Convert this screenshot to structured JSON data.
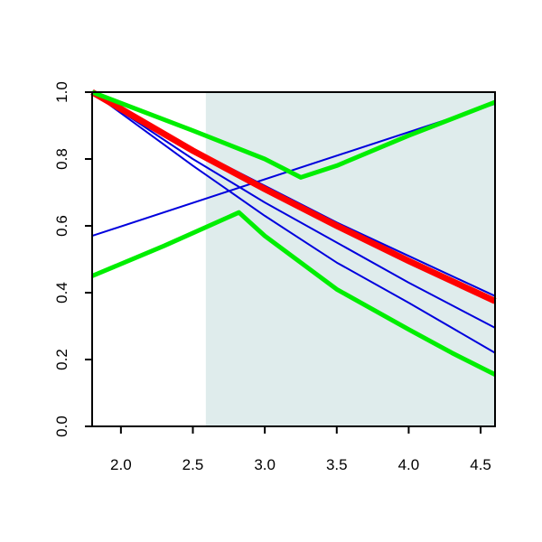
{
  "chart_data": {
    "type": "line",
    "title": "",
    "xlabel": "",
    "ylabel": "",
    "xlim": [
      1.8,
      4.6
    ],
    "ylim": [
      0.0,
      1.0
    ],
    "x_ticks": [
      2.0,
      2.5,
      3.0,
      3.5,
      4.0,
      4.5
    ],
    "x_tick_labels": [
      "2.0",
      "2.5",
      "3.0",
      "3.5",
      "4.0",
      "4.5"
    ],
    "y_ticks": [
      0.0,
      0.2,
      0.4,
      0.6,
      0.8,
      1.0
    ],
    "y_tick_labels": [
      "0.0",
      "0.2",
      "0.4",
      "0.6",
      "0.8",
      "1.0"
    ],
    "grid": false,
    "legend": "none",
    "shaded_region": {
      "x_from": 2.59,
      "x_to": 4.6,
      "color": "#dfecec"
    },
    "series": [
      {
        "color": "#0000dd",
        "width": 2,
        "points": [
          [
            1.8,
            0.57
          ],
          [
            4.6,
            0.965
          ]
        ]
      },
      {
        "color": "#0000dd",
        "width": 2,
        "points": [
          [
            1.8,
            1.0
          ],
          [
            2.5,
            0.83
          ],
          [
            3.0,
            0.72
          ],
          [
            3.5,
            0.61
          ],
          [
            4.0,
            0.51
          ],
          [
            4.6,
            0.39
          ]
        ]
      },
      {
        "color": "#0000dd",
        "width": 2,
        "points": [
          [
            1.8,
            1.0
          ],
          [
            2.5,
            0.8
          ],
          [
            3.0,
            0.67
          ],
          [
            3.5,
            0.55
          ],
          [
            4.0,
            0.43
          ],
          [
            4.6,
            0.295
          ]
        ]
      },
      {
        "color": "#0000dd",
        "width": 2,
        "points": [
          [
            1.8,
            1.0
          ],
          [
            2.5,
            0.78
          ],
          [
            3.0,
            0.63
          ],
          [
            3.5,
            0.49
          ],
          [
            4.0,
            0.37
          ],
          [
            4.6,
            0.22
          ]
        ]
      },
      {
        "color": "#ff0000",
        "width": 7,
        "points": [
          [
            1.8,
            1.0
          ],
          [
            2.5,
            0.825
          ],
          [
            3.0,
            0.71
          ],
          [
            3.5,
            0.6
          ],
          [
            4.0,
            0.495
          ],
          [
            4.6,
            0.375
          ]
        ]
      },
      {
        "color": "#00ee00",
        "width": 5,
        "points": [
          [
            1.8,
            1.0
          ],
          [
            2.5,
            0.885
          ],
          [
            3.0,
            0.8
          ],
          [
            3.25,
            0.745
          ],
          [
            3.5,
            0.78
          ],
          [
            4.0,
            0.87
          ],
          [
            4.6,
            0.97
          ]
        ]
      },
      {
        "color": "#00ee00",
        "width": 5,
        "points": [
          [
            1.8,
            0.45
          ],
          [
            2.3,
            0.54
          ],
          [
            2.82,
            0.64
          ],
          [
            3.0,
            0.57
          ],
          [
            3.5,
            0.41
          ],
          [
            4.0,
            0.29
          ],
          [
            4.3,
            0.22
          ],
          [
            4.6,
            0.155
          ]
        ]
      }
    ]
  }
}
